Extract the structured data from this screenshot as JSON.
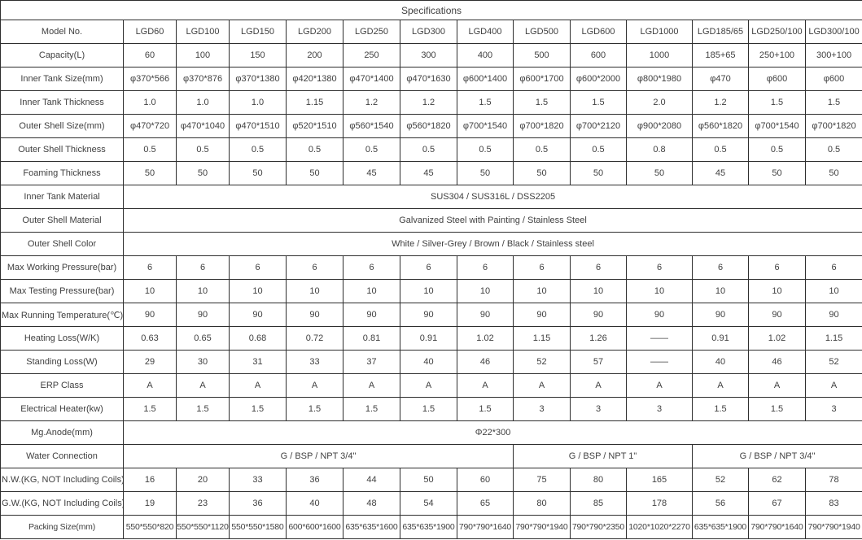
{
  "title": "Specifications",
  "table": {
    "header": {
      "label": "Model No.",
      "models": [
        "LGD60",
        "LGD100",
        "LGD150",
        "LGD200",
        "LGD250",
        "LGD300",
        "LGD400",
        "LGD500",
        "LGD600",
        "LGD1000",
        "LGD185/65",
        "LGD250/100",
        "LGD300/100"
      ]
    },
    "rows": [
      {
        "label": "Capacity(L)",
        "cells": [
          "60",
          "100",
          "150",
          "200",
          "250",
          "300",
          "400",
          "500",
          "600",
          "1000",
          "185+65",
          "250+100",
          "300+100"
        ]
      },
      {
        "label": "Inner Tank Size(mm)",
        "cells": [
          "φ370*566",
          "φ370*876",
          "φ370*1380",
          "φ420*1380",
          "φ470*1400",
          "φ470*1630",
          "φ600*1400",
          "φ600*1700",
          "φ600*2000",
          "φ800*1980",
          "φ470",
          "φ600",
          "φ600"
        ]
      },
      {
        "label": "Inner Tank Thickness",
        "cells": [
          "1.0",
          "1.0",
          "1.0",
          "1.15",
          "1.2",
          "1.2",
          "1.5",
          "1.5",
          "1.5",
          "2.0",
          "1.2",
          "1.5",
          "1.5"
        ]
      },
      {
        "label": "Outer Shell Size(mm)",
        "cells": [
          "φ470*720",
          "φ470*1040",
          "φ470*1510",
          "φ520*1510",
          "φ560*1540",
          "φ560*1820",
          "φ700*1540",
          "φ700*1820",
          "φ700*2120",
          "φ900*2080",
          "φ560*1820",
          "φ700*1540",
          "φ700*1820"
        ]
      },
      {
        "label": "Outer Shell Thickness",
        "cells": [
          "0.5",
          "0.5",
          "0.5",
          "0.5",
          "0.5",
          "0.5",
          "0.5",
          "0.5",
          "0.5",
          "0.8",
          "0.5",
          "0.5",
          "0.5"
        ]
      },
      {
        "label": "Foaming Thickness",
        "cells": [
          "50",
          "50",
          "50",
          "50",
          "45",
          "45",
          "50",
          "50",
          "50",
          "50",
          "45",
          "50",
          "50"
        ]
      },
      {
        "label": "Inner Tank Material",
        "cells": [
          {
            "text": "SUS304 / SUS316L / DSS2205",
            "span": 13
          }
        ]
      },
      {
        "label": "Outer Shell Material",
        "cells": [
          {
            "text": "Galvanized Steel with Painting / Stainless Steel",
            "span": 13
          }
        ]
      },
      {
        "label": "Outer Shell Color",
        "cells": [
          {
            "text": "White / Silver-Grey / Brown / Black / Stainless steel",
            "span": 13
          }
        ]
      },
      {
        "label": "Max Working Pressure(bar)",
        "cells": [
          "6",
          "6",
          "6",
          "6",
          "6",
          "6",
          "6",
          "6",
          "6",
          "6",
          "6",
          "6",
          "6"
        ]
      },
      {
        "label": "Max Testing Pressure(bar)",
        "cells": [
          "10",
          "10",
          "10",
          "10",
          "10",
          "10",
          "10",
          "10",
          "10",
          "10",
          "10",
          "10",
          "10"
        ]
      },
      {
        "label": "Max Running Temperature(℃)",
        "cells": [
          "90",
          "90",
          "90",
          "90",
          "90",
          "90",
          "90",
          "90",
          "90",
          "90",
          "90",
          "90",
          "90"
        ]
      },
      {
        "label": "Heating Loss(W/K)",
        "cells": [
          "0.63",
          "0.65",
          "0.68",
          "0.72",
          "0.81",
          "0.91",
          "1.02",
          "1.15",
          "1.26",
          "——",
          "0.91",
          "1.02",
          "1.15"
        ]
      },
      {
        "label": "Standing Loss(W)",
        "cells": [
          "29",
          "30",
          "31",
          "33",
          "37",
          "40",
          "46",
          "52",
          "57",
          "——",
          "40",
          "46",
          "52"
        ]
      },
      {
        "label": "ERP Class",
        "cells": [
          "A",
          "A",
          "A",
          "A",
          "A",
          "A",
          "A",
          "A",
          "A",
          "A",
          "A",
          "A",
          "A"
        ]
      },
      {
        "label": "Electrical Heater(kw)",
        "cells": [
          "1.5",
          "1.5",
          "1.5",
          "1.5",
          "1.5",
          "1.5",
          "1.5",
          "3",
          "3",
          "3",
          "1.5",
          "1.5",
          "3"
        ]
      },
      {
        "label": "Mg.Anode(mm)",
        "cells": [
          {
            "text": "Φ22*300",
            "span": 13
          }
        ]
      },
      {
        "label": "Water Connection",
        "cells": [
          {
            "text": "G / BSP / NPT 3/4\"",
            "span": 7
          },
          {
            "text": "G / BSP / NPT 1\"",
            "span": 3
          },
          {
            "text": "G / BSP / NPT 3/4\"",
            "span": 3
          }
        ]
      },
      {
        "label": "N.W.(KG, NOT Including Coils)",
        "cells": [
          "16",
          "20",
          "33",
          "36",
          "44",
          "50",
          "60",
          "75",
          "80",
          "165",
          "52",
          "62",
          "78"
        ]
      },
      {
        "label": "G.W.(KG, NOT Including Coils)",
        "cells": [
          "19",
          "23",
          "36",
          "40",
          "48",
          "54",
          "65",
          "80",
          "85",
          "178",
          "56",
          "67",
          "83"
        ]
      },
      {
        "label": "Packing Size(mm)",
        "packing": true,
        "cells": [
          "550*550*820",
          "550*550*1120",
          "550*550*1580",
          "600*600*1600",
          "635*635*1600",
          "635*635*1900",
          "790*790*1640",
          "790*790*1940",
          "790*790*2350",
          "1020*1020*2270",
          "635*635*1900",
          "790*790*1640",
          "790*790*1940"
        ]
      }
    ]
  }
}
